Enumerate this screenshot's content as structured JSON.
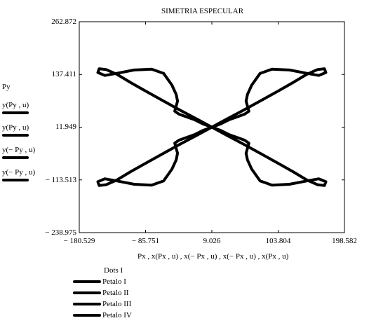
{
  "chart_data": {
    "type": "line",
    "title": "SIMETRIA ESPECULAR",
    "xlabel": "Px , x(Px , u) , x(− Px , u) , x(− Px , u) , x(Px , u)",
    "ylabel_lines": [
      "Py",
      "y(Py , u)",
      "y(Py , u)",
      "y(− Py , u)",
      "y(− Py , u)"
    ],
    "xlim": [
      -180.529,
      198.582
    ],
    "ylim": [
      -238.975,
      262.872
    ],
    "x_ticks": [
      -180.529,
      -85.751,
      9.026,
      103.804,
      198.582
    ],
    "x_tick_labels": [
      "− 180.529",
      "− 85.751",
      "9.026",
      "103.804",
      "198.582"
    ],
    "y_ticks": [
      262.872,
      137.411,
      11.949,
      -113.513,
      -238.975
    ],
    "y_tick_labels": [
      "262.872",
      "137.411",
      "11.949",
      "− 113.513",
      "− 238.975"
    ],
    "grid": false,
    "legend": {
      "placement": "below",
      "title": "Dots I",
      "entries": [
        "Petalo I",
        "Petalo II",
        "Petalo III",
        "Petalo IV"
      ]
    },
    "series": [
      {
        "name": "Petalo I",
        "x": [
          9,
          30,
          55,
          80,
          105,
          125,
          145,
          160,
          170,
          172,
          162,
          145,
          120,
          95,
          78,
          66,
          60,
          58,
          60,
          62,
          56,
          46,
          34,
          22,
          9
        ],
        "y": [
          12,
          31,
          53,
          76,
          99,
          118,
          138,
          149,
          151,
          142,
          135,
          140,
          148,
          150,
          140,
          112,
          90,
          74,
          62,
          50,
          43,
          37,
          30,
          20,
          12
        ]
      },
      {
        "name": "Petalo II",
        "x": [
          9,
          -12,
          -37,
          -62,
          -87,
          -107,
          -127,
          -142,
          -152,
          -154,
          -144,
          -127,
          -102,
          -77,
          -60,
          -48,
          -42,
          -40,
          -42,
          -44,
          -38,
          -28,
          -16,
          -4,
          9
        ],
        "y": [
          12,
          31,
          53,
          76,
          99,
          118,
          138,
          149,
          151,
          142,
          135,
          140,
          148,
          150,
          140,
          112,
          90,
          74,
          62,
          50,
          43,
          37,
          30,
          20,
          12
        ]
      },
      {
        "name": "Petalo III",
        "x": [
          9,
          -12,
          -37,
          -62,
          -87,
          -107,
          -127,
          -142,
          -152,
          -154,
          -144,
          -127,
          -102,
          -77,
          -60,
          -48,
          -42,
          -40,
          -42,
          -44,
          -38,
          -28,
          -16,
          -4,
          9
        ],
        "y": [
          12,
          -7,
          -29,
          -52,
          -75,
          -94,
          -114,
          -125,
          -127,
          -118,
          -111,
          -116,
          -124,
          -126,
          -116,
          -88,
          -66,
          -50,
          -38,
          -26,
          -19,
          -13,
          -6,
          4,
          12
        ]
      },
      {
        "name": "Petalo IV",
        "x": [
          9,
          30,
          55,
          80,
          105,
          125,
          145,
          160,
          170,
          172,
          162,
          145,
          120,
          95,
          78,
          66,
          60,
          58,
          60,
          62,
          56,
          46,
          34,
          22,
          9
        ],
        "y": [
          12,
          -7,
          -29,
          -52,
          -75,
          -94,
          -114,
          -125,
          -127,
          -118,
          -111,
          -116,
          -124,
          -126,
          -116,
          -88,
          -66,
          -50,
          -38,
          -26,
          -19,
          -13,
          -6,
          4,
          12
        ]
      }
    ]
  }
}
